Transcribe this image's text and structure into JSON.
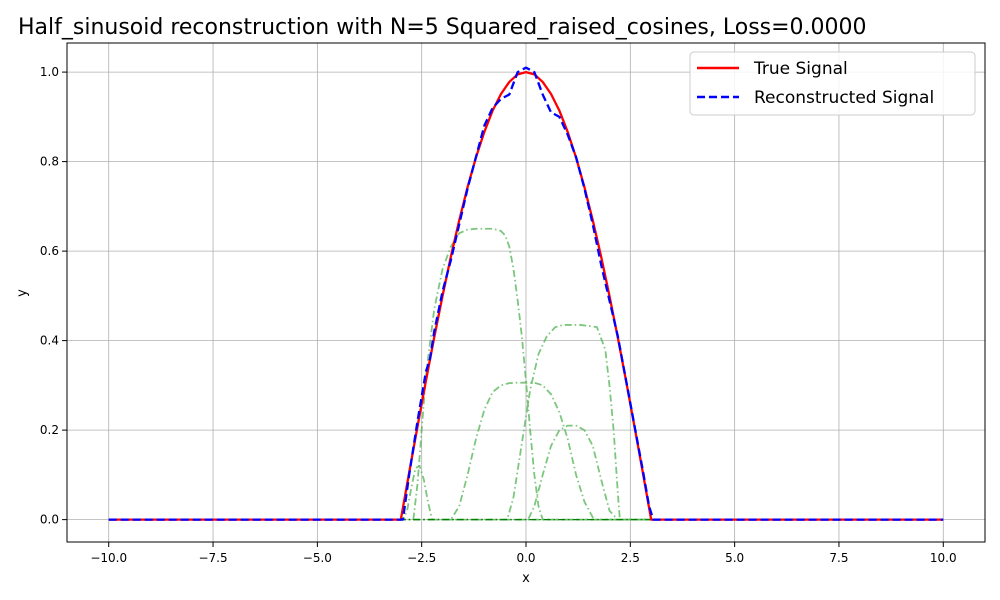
{
  "chart_data": {
    "type": "line",
    "title": "Half_sinusoid reconstruction with N=5 Squared_raised_cosines, Loss=0.0000",
    "xlabel": "x",
    "ylabel": "y",
    "xlim": [
      -11.0,
      11.0
    ],
    "ylim": [
      -0.05,
      1.065
    ],
    "xticks": [
      -10.0,
      -7.5,
      -5.0,
      -2.5,
      0.0,
      2.5,
      5.0,
      7.5,
      10.0
    ],
    "xtick_labels": [
      "−10.0",
      "−7.5",
      "−5.0",
      "−2.5",
      "0.0",
      "2.5",
      "5.0",
      "7.5",
      "10.0"
    ],
    "yticks": [
      0.0,
      0.2,
      0.4,
      0.6,
      0.8,
      1.0
    ],
    "ytick_labels": [
      "0.0",
      "0.2",
      "0.4",
      "0.6",
      "0.8",
      "1.0"
    ],
    "grid": true,
    "legend_position": "top-right",
    "series": [
      {
        "name": "True Signal",
        "color": "#ff0000",
        "style": "solid",
        "x": [
          -10,
          -3.0,
          -2.8,
          -2.6,
          -2.4,
          -2.2,
          -2.0,
          -1.8,
          -1.6,
          -1.4,
          -1.2,
          -1.0,
          -0.8,
          -0.6,
          -0.4,
          -0.2,
          0.0,
          0.2,
          0.4,
          0.6,
          0.8,
          1.0,
          1.2,
          1.4,
          1.6,
          1.8,
          2.0,
          2.2,
          2.4,
          2.6,
          2.8,
          3.0,
          10
        ],
        "y": [
          0,
          0,
          0.105,
          0.208,
          0.309,
          0.407,
          0.5,
          0.588,
          0.669,
          0.743,
          0.809,
          0.866,
          0.914,
          0.951,
          0.978,
          0.995,
          1.0,
          0.995,
          0.978,
          0.951,
          0.914,
          0.866,
          0.809,
          0.743,
          0.669,
          0.588,
          0.5,
          0.407,
          0.309,
          0.208,
          0.105,
          0,
          0
        ]
      },
      {
        "name": "Reconstructed Signal",
        "color": "#0000ff",
        "style": "dashed",
        "x": [
          -10,
          -2.95,
          -2.8,
          -2.6,
          -2.4,
          -2.3,
          -2.2,
          -2.0,
          -1.8,
          -1.6,
          -1.4,
          -1.2,
          -1.0,
          -0.8,
          -0.6,
          -0.4,
          -0.2,
          0.0,
          0.2,
          0.4,
          0.6,
          0.8,
          1.0,
          1.2,
          1.4,
          1.6,
          1.8,
          2.0,
          2.2,
          2.4,
          2.6,
          2.8,
          2.95,
          3.05,
          10
        ],
        "y": [
          0,
          0,
          0.1,
          0.22,
          0.33,
          0.36,
          0.42,
          0.51,
          0.58,
          0.66,
          0.74,
          0.81,
          0.88,
          0.92,
          0.94,
          0.95,
          1.0,
          1.01,
          1.0,
          0.95,
          0.91,
          0.9,
          0.86,
          0.81,
          0.74,
          0.66,
          0.57,
          0.49,
          0.41,
          0.31,
          0.21,
          0.11,
          0.03,
          0,
          0
        ]
      }
    ],
    "basis_series": [
      {
        "color": "#5cb85c",
        "style": "dashdot",
        "x": [
          -10,
          -2.95,
          -2.85,
          -2.75,
          -2.65,
          -2.55,
          -2.45,
          -2.35,
          -2.25,
          10
        ],
        "y": [
          0,
          0,
          0.02,
          0.07,
          0.115,
          0.12,
          0.09,
          0.04,
          0,
          0
        ]
      },
      {
        "color": "#5cb85c",
        "style": "dashdot",
        "x": [
          -10,
          -2.7,
          -2.6,
          -2.5,
          -2.4,
          -2.2,
          -2.0,
          -1.8,
          -1.6,
          -1.4,
          -1.2,
          -1.0,
          -0.8,
          -0.6,
          -0.5,
          -0.4,
          -0.3,
          -0.2,
          -0.1,
          0.0,
          0.1,
          0.2,
          0.3,
          0.4,
          10
        ],
        "y": [
          0,
          0,
          0.08,
          0.2,
          0.32,
          0.47,
          0.56,
          0.61,
          0.64,
          0.648,
          0.65,
          0.65,
          0.65,
          0.645,
          0.635,
          0.61,
          0.56,
          0.49,
          0.41,
          0.31,
          0.2,
          0.1,
          0.03,
          0,
          0
        ]
      },
      {
        "color": "#5cb85c",
        "style": "dashdot",
        "x": [
          -10,
          -1.8,
          -1.6,
          -1.4,
          -1.2,
          -1.0,
          -0.8,
          -0.6,
          -0.4,
          -0.2,
          0.0,
          0.2,
          0.4,
          0.6,
          0.8,
          1.0,
          1.2,
          1.4,
          1.6,
          1.7,
          10
        ],
        "y": [
          0,
          0,
          0.03,
          0.1,
          0.18,
          0.245,
          0.285,
          0.3,
          0.305,
          0.306,
          0.306,
          0.306,
          0.3,
          0.28,
          0.24,
          0.18,
          0.1,
          0.04,
          0.005,
          0,
          0
        ]
      },
      {
        "color": "#5cb85c",
        "style": "dashdot",
        "x": [
          -10,
          -0.45,
          -0.3,
          -0.1,
          0.1,
          0.3,
          0.5,
          0.7,
          0.9,
          1.1,
          1.3,
          1.5,
          1.7,
          1.9,
          2.0,
          2.1,
          2.2,
          2.25,
          10
        ],
        "y": [
          0,
          0,
          0.05,
          0.17,
          0.29,
          0.37,
          0.41,
          0.43,
          0.435,
          0.435,
          0.435,
          0.433,
          0.43,
          0.38,
          0.3,
          0.2,
          0.06,
          0,
          0
        ]
      },
      {
        "color": "#5cb85c",
        "style": "dashdot",
        "x": [
          -10,
          0.05,
          0.2,
          0.4,
          0.6,
          0.8,
          1.0,
          1.2,
          1.4,
          1.6,
          1.8,
          2.0,
          2.2,
          10
        ],
        "y": [
          0,
          0,
          0.03,
          0.1,
          0.165,
          0.2,
          0.21,
          0.21,
          0.2,
          0.165,
          0.09,
          0.02,
          0,
          0
        ]
      }
    ]
  }
}
